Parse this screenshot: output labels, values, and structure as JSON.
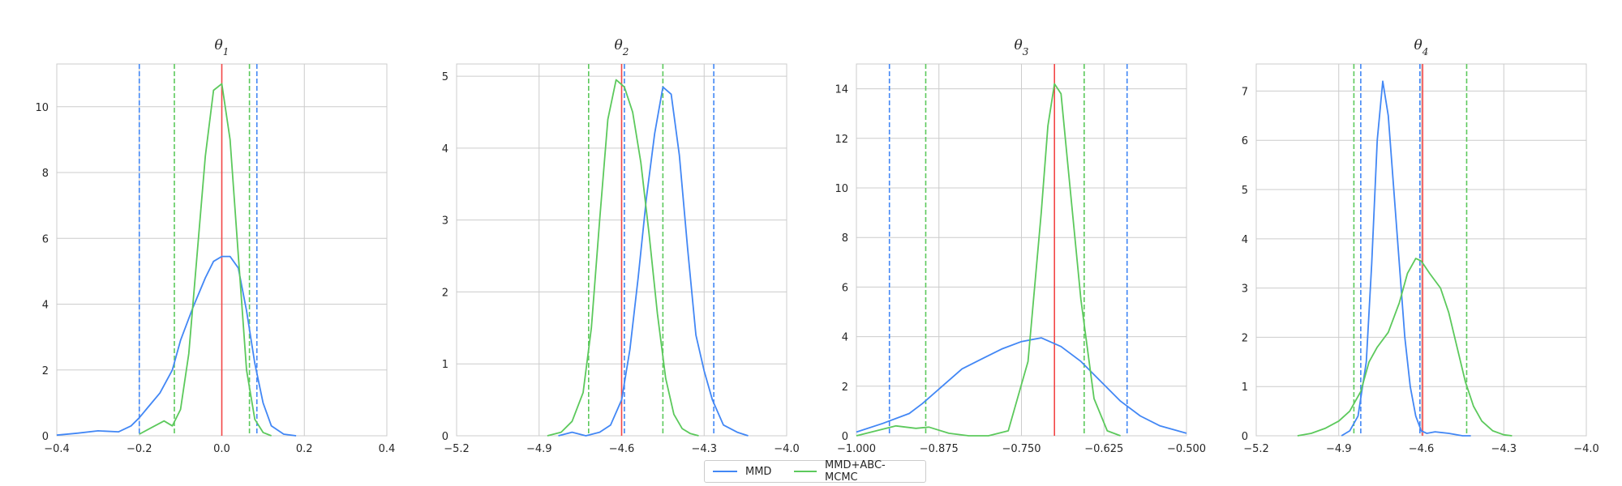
{
  "colors": {
    "mmd": "#4287f5",
    "abc": "#5cc95c",
    "truth": "#f24646",
    "grid": "#cccccc"
  },
  "legend": {
    "items": [
      {
        "label": "MMD",
        "color": "#4287f5"
      },
      {
        "label": "MMD+ABC-MCMC",
        "color": "#5cc95c"
      }
    ],
    "placement": "bottom-center"
  },
  "chart_data": [
    {
      "type": "line",
      "title": "θ1",
      "title_parts": {
        "base": "θ",
        "sub": "1"
      },
      "xlim": [
        -0.4,
        0.4
      ],
      "ylim": [
        0,
        11.3
      ],
      "xticks": [
        -0.4,
        -0.2,
        0.0,
        0.2,
        0.4
      ],
      "xtick_labels": [
        "−0.4",
        "−0.2",
        "0.0",
        "0.2",
        "0.4"
      ],
      "yticks": [
        0,
        2,
        4,
        6,
        8,
        10
      ],
      "ytick_labels": [
        "0",
        "2",
        "4",
        "6",
        "8",
        "10"
      ],
      "grid": true,
      "series": [
        {
          "name": "MMD",
          "color": "#4287f5",
          "style": "solid",
          "x": [
            -0.4,
            -0.35,
            -0.3,
            -0.25,
            -0.22,
            -0.2,
            -0.18,
            -0.15,
            -0.12,
            -0.1,
            -0.07,
            -0.04,
            -0.02,
            0.0,
            0.02,
            0.04,
            0.06,
            0.08,
            0.1,
            0.12,
            0.15,
            0.18
          ],
          "y": [
            0.02,
            0.08,
            0.15,
            0.12,
            0.3,
            0.55,
            0.85,
            1.3,
            2.0,
            2.9,
            3.9,
            4.8,
            5.3,
            5.45,
            5.45,
            5.1,
            3.8,
            2.2,
            1.0,
            0.3,
            0.05,
            0.0
          ]
        },
        {
          "name": "MMD+ABC-MCMC",
          "color": "#5cc95c",
          "style": "solid",
          "x": [
            -0.2,
            -0.17,
            -0.14,
            -0.12,
            -0.1,
            -0.08,
            -0.06,
            -0.04,
            -0.02,
            0.0,
            0.02,
            0.04,
            0.06,
            0.08,
            0.1,
            0.12
          ],
          "y": [
            0.05,
            0.25,
            0.45,
            0.3,
            0.8,
            2.5,
            5.5,
            8.5,
            10.5,
            10.7,
            9.0,
            5.5,
            2.0,
            0.5,
            0.1,
            0.0
          ]
        }
      ],
      "vlines": [
        {
          "x": -0.2,
          "color": "#4287f5",
          "style": "dashed"
        },
        {
          "x": 0.085,
          "color": "#4287f5",
          "style": "dashed"
        },
        {
          "x": -0.115,
          "color": "#5cc95c",
          "style": "dashed"
        },
        {
          "x": 0.067,
          "color": "#5cc95c",
          "style": "dashed"
        },
        {
          "x": 0.0,
          "color": "#f24646",
          "style": "solid"
        }
      ]
    },
    {
      "type": "line",
      "title": "θ2",
      "title_parts": {
        "base": "θ",
        "sub": "2"
      },
      "xlim": [
        -5.2,
        -4.0
      ],
      "ylim": [
        0,
        5.17
      ],
      "xticks": [
        -5.2,
        -4.9,
        -4.6,
        -4.3,
        -4.0
      ],
      "xtick_labels": [
        "−5.2",
        "−4.9",
        "−4.6",
        "−4.3",
        "−4.0"
      ],
      "yticks": [
        0,
        1,
        2,
        3,
        4,
        5
      ],
      "ytick_labels": [
        "0",
        "1",
        "2",
        "3",
        "4",
        "5"
      ],
      "grid": true,
      "series": [
        {
          "name": "MMD",
          "color": "#4287f5",
          "style": "solid",
          "x": [
            -4.83,
            -4.78,
            -4.73,
            -4.68,
            -4.64,
            -4.6,
            -4.57,
            -4.54,
            -4.51,
            -4.48,
            -4.45,
            -4.42,
            -4.39,
            -4.36,
            -4.33,
            -4.3,
            -4.27,
            -4.23,
            -4.18,
            -4.14
          ],
          "y": [
            0.0,
            0.05,
            0.0,
            0.05,
            0.15,
            0.5,
            1.2,
            2.2,
            3.3,
            4.2,
            4.85,
            4.75,
            3.9,
            2.6,
            1.4,
            0.9,
            0.5,
            0.15,
            0.05,
            0.0
          ]
        },
        {
          "name": "MMD+ABC-MCMC",
          "color": "#5cc95c",
          "style": "solid",
          "x": [
            -4.87,
            -4.82,
            -4.78,
            -4.74,
            -4.71,
            -4.68,
            -4.65,
            -4.62,
            -4.59,
            -4.56,
            -4.53,
            -4.5,
            -4.47,
            -4.44,
            -4.41,
            -4.38,
            -4.35,
            -4.32
          ],
          "y": [
            0.0,
            0.05,
            0.2,
            0.6,
            1.5,
            3.0,
            4.4,
            4.95,
            4.85,
            4.5,
            3.8,
            2.8,
            1.7,
            0.8,
            0.3,
            0.1,
            0.03,
            0.0
          ]
        }
      ],
      "vlines": [
        {
          "x": -4.59,
          "color": "#4287f5",
          "style": "dashed"
        },
        {
          "x": -4.265,
          "color": "#4287f5",
          "style": "dashed"
        },
        {
          "x": -4.72,
          "color": "#5cc95c",
          "style": "dashed"
        },
        {
          "x": -4.45,
          "color": "#5cc95c",
          "style": "dashed"
        },
        {
          "x": -4.6,
          "color": "#f24646",
          "style": "solid"
        }
      ]
    },
    {
      "type": "line",
      "title": "θ3",
      "title_parts": {
        "base": "θ",
        "sub": "3"
      },
      "xlim": [
        -1.0,
        -0.5
      ],
      "ylim": [
        0,
        15.0
      ],
      "xticks": [
        -1.0,
        -0.875,
        -0.75,
        -0.625,
        -0.5
      ],
      "xtick_labels": [
        "−1.000",
        "−0.875",
        "−0.750",
        "−0.625",
        "−0.500"
      ],
      "yticks": [
        0,
        2,
        4,
        6,
        8,
        10,
        12,
        14
      ],
      "ytick_labels": [
        "0",
        "2",
        "4",
        "6",
        "8",
        "10",
        "12",
        "14"
      ],
      "grid": true,
      "series": [
        {
          "name": "MMD",
          "color": "#4287f5",
          "style": "solid",
          "x": [
            -1.0,
            -0.96,
            -0.92,
            -0.9,
            -0.87,
            -0.84,
            -0.81,
            -0.78,
            -0.75,
            -0.72,
            -0.69,
            -0.66,
            -0.63,
            -0.6,
            -0.57,
            -0.54,
            -0.5
          ],
          "y": [
            0.15,
            0.5,
            0.9,
            1.3,
            2.0,
            2.7,
            3.1,
            3.5,
            3.8,
            3.95,
            3.6,
            3.0,
            2.2,
            1.4,
            0.8,
            0.4,
            0.1
          ]
        },
        {
          "name": "MMD+ABC-MCMC",
          "color": "#5cc95c",
          "style": "solid",
          "x": [
            -1.0,
            -0.97,
            -0.94,
            -0.91,
            -0.89,
            -0.86,
            -0.83,
            -0.8,
            -0.77,
            -0.74,
            -0.72,
            -0.71,
            -0.7,
            -0.69,
            -0.68,
            -0.66,
            -0.64,
            -0.62,
            -0.6
          ],
          "y": [
            0.0,
            0.2,
            0.4,
            0.3,
            0.35,
            0.1,
            0.0,
            0.0,
            0.2,
            3.0,
            9.0,
            12.5,
            14.2,
            13.8,
            11.0,
            5.5,
            1.5,
            0.2,
            0.0
          ]
        }
      ],
      "vlines": [
        {
          "x": -0.95,
          "color": "#4287f5",
          "style": "dashed"
        },
        {
          "x": -0.59,
          "color": "#4287f5",
          "style": "dashed"
        },
        {
          "x": -0.895,
          "color": "#5cc95c",
          "style": "dashed"
        },
        {
          "x": -0.655,
          "color": "#5cc95c",
          "style": "dashed"
        },
        {
          "x": -0.7,
          "color": "#f24646",
          "style": "solid"
        }
      ]
    },
    {
      "type": "line",
      "title": "θ4",
      "title_parts": {
        "base": "θ",
        "sub": "4"
      },
      "xlim": [
        -5.2,
        -4.0
      ],
      "ylim": [
        0,
        7.55
      ],
      "xticks": [
        -5.2,
        -4.9,
        -4.6,
        -4.3,
        -4.0
      ],
      "xtick_labels": [
        "−5.2",
        "−4.9",
        "−4.6",
        "−4.3",
        "−4.0"
      ],
      "yticks": [
        0,
        1,
        2,
        3,
        4,
        5,
        6,
        7
      ],
      "ytick_labels": [
        "0",
        "1",
        "2",
        "3",
        "4",
        "5",
        "6",
        "7"
      ],
      "grid": true,
      "series": [
        {
          "name": "MMD",
          "color": "#4287f5",
          "style": "solid",
          "x": [
            -4.89,
            -4.86,
            -4.83,
            -4.8,
            -4.78,
            -4.76,
            -4.74,
            -4.72,
            -4.7,
            -4.68,
            -4.66,
            -4.64,
            -4.62,
            -4.6,
            -4.58,
            -4.55,
            -4.5,
            -4.45,
            -4.42
          ],
          "y": [
            0.0,
            0.1,
            0.4,
            1.5,
            3.5,
            6.0,
            7.2,
            6.5,
            5.0,
            3.5,
            2.0,
            1.0,
            0.4,
            0.1,
            0.05,
            0.08,
            0.05,
            0.0,
            0.0
          ]
        },
        {
          "name": "MMD+ABC-MCMC",
          "color": "#5cc95c",
          "style": "solid",
          "x": [
            -5.05,
            -5.0,
            -4.95,
            -4.9,
            -4.86,
            -4.82,
            -4.79,
            -4.76,
            -4.72,
            -4.68,
            -4.65,
            -4.62,
            -4.6,
            -4.57,
            -4.53,
            -4.5,
            -4.47,
            -4.44,
            -4.41,
            -4.38,
            -4.34,
            -4.3,
            -4.27
          ],
          "y": [
            0.0,
            0.05,
            0.15,
            0.3,
            0.5,
            0.9,
            1.5,
            1.8,
            2.1,
            2.7,
            3.3,
            3.6,
            3.55,
            3.3,
            3.0,
            2.5,
            1.8,
            1.1,
            0.6,
            0.3,
            0.1,
            0.02,
            0.0
          ]
        }
      ],
      "vlines": [
        {
          "x": -4.82,
          "color": "#4287f5",
          "style": "dashed"
        },
        {
          "x": -4.605,
          "color": "#4287f5",
          "style": "dashed"
        },
        {
          "x": -4.845,
          "color": "#5cc95c",
          "style": "dashed"
        },
        {
          "x": -4.435,
          "color": "#5cc95c",
          "style": "dashed"
        },
        {
          "x": -4.595,
          "color": "#f24646",
          "style": "solid"
        }
      ]
    }
  ]
}
